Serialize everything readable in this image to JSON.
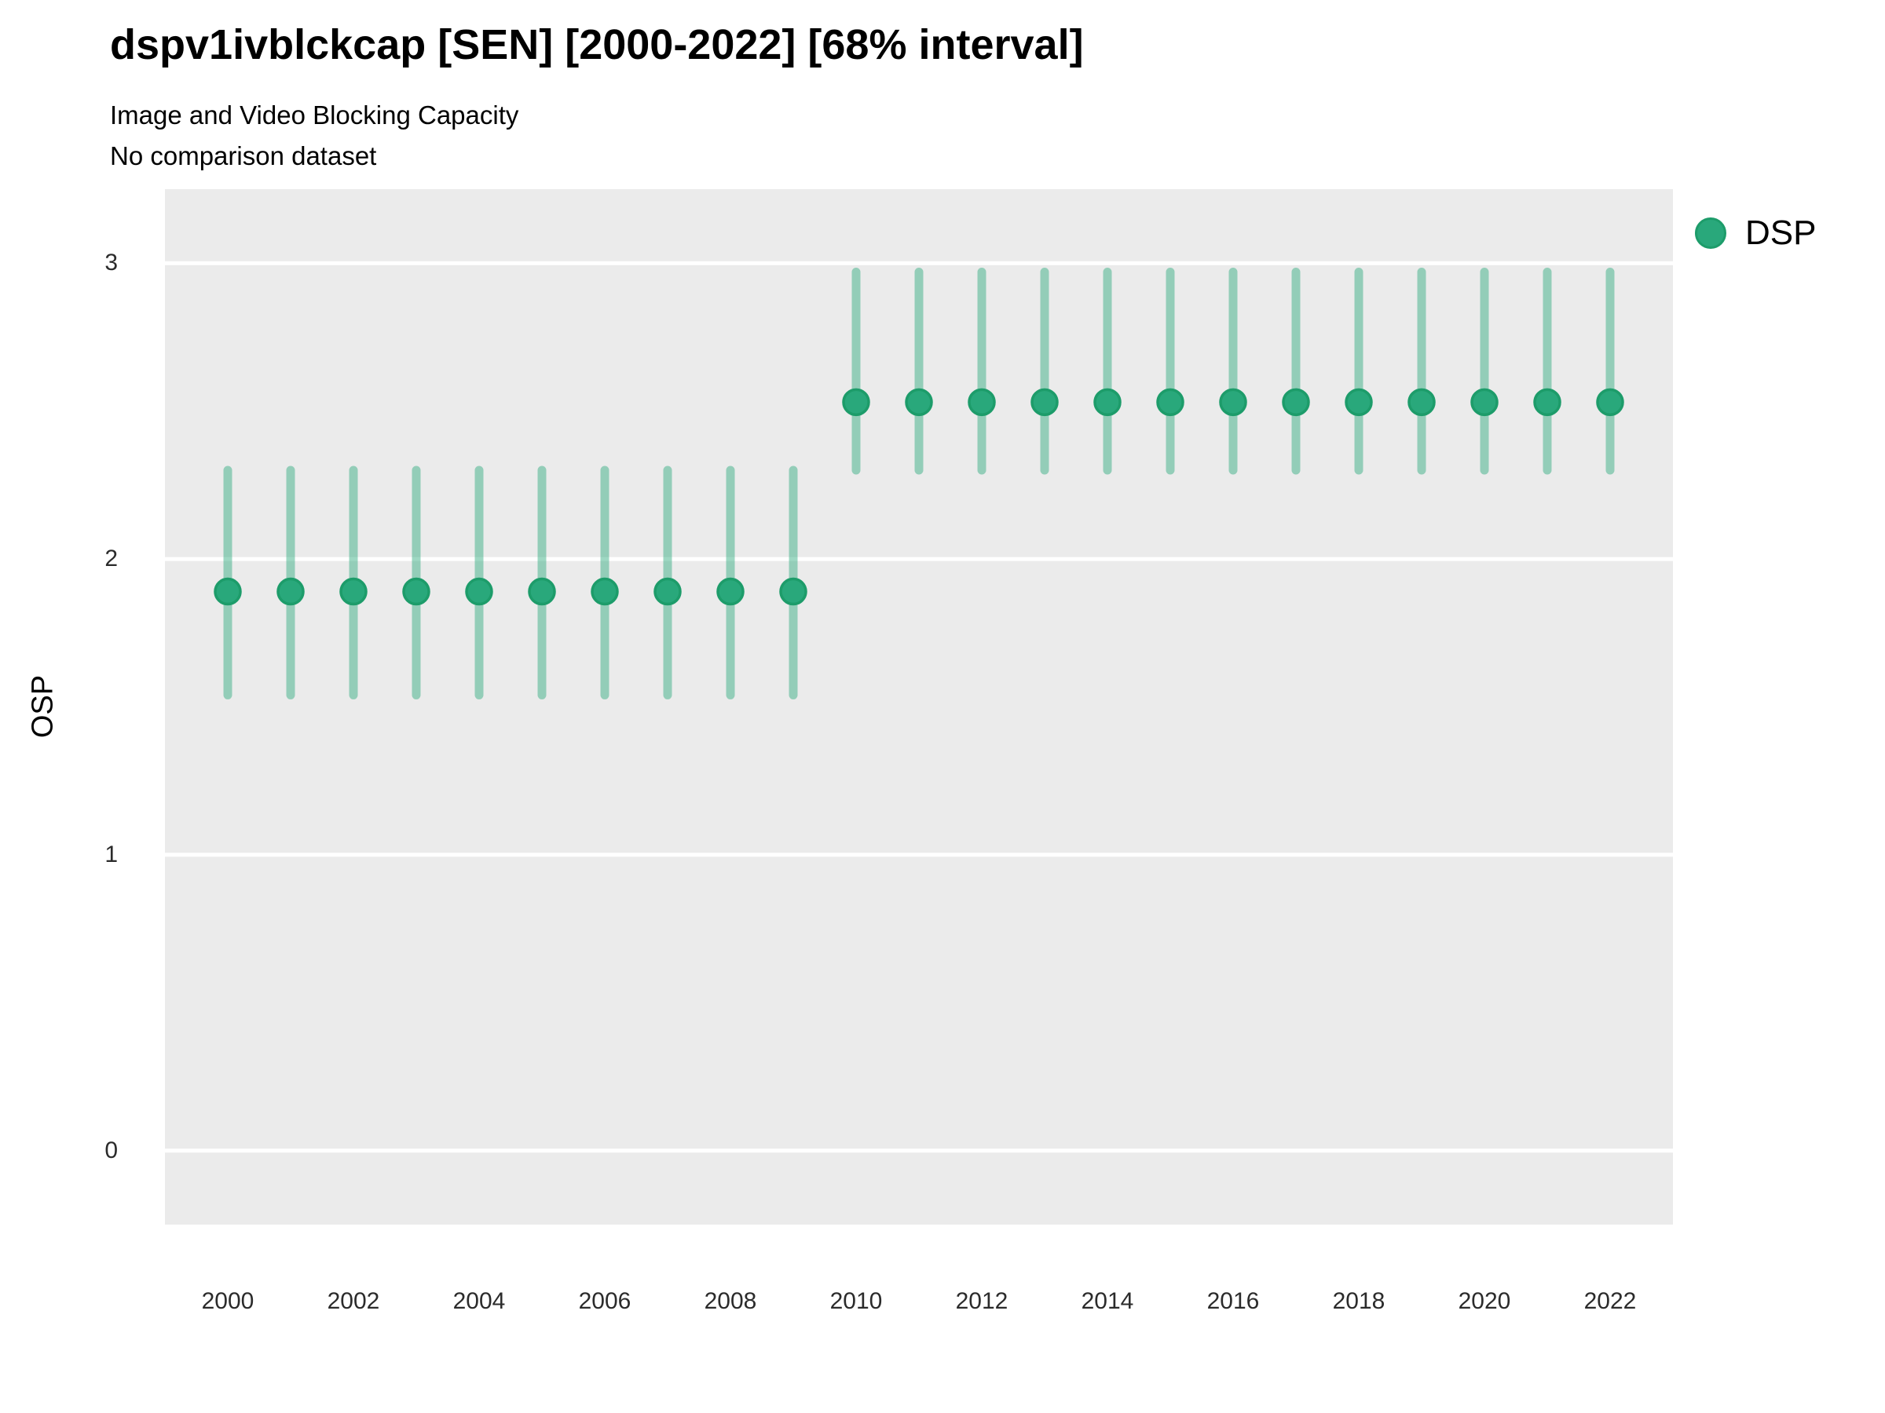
{
  "header": {
    "title": "dspv1ivblckcap [SEN] [2000-2022] [68% interval]",
    "subtitle": "Image and Video Blocking Capacity",
    "note": "No comparison dataset"
  },
  "axes": {
    "y_label": "OSP",
    "y_ticks": [
      0,
      1,
      2,
      3
    ],
    "x_ticks": [
      2000,
      2002,
      2004,
      2006,
      2008,
      2010,
      2012,
      2014,
      2016,
      2018,
      2020,
      2022
    ]
  },
  "legend": {
    "items": [
      {
        "label": "DSP",
        "color": "#29a87b"
      }
    ]
  },
  "colors": {
    "point_fill": "#29a87b",
    "point_stroke": "#1d9c6a",
    "interval_line": "rgba(41,168,123,0.45)",
    "panel_background": "#EBEBEB",
    "gridline": "#FFFFFF"
  },
  "chart_data": {
    "type": "scatter",
    "title": "dspv1ivblckcap [SEN] [2000-2022] [68% interval]",
    "subtitle": "Image and Video Blocking Capacity",
    "note": "No comparison dataset",
    "xlabel": "",
    "ylabel": "OSP",
    "interval": "68%",
    "xlim": [
      1999,
      2023
    ],
    "ylim": [
      -0.25,
      3.25
    ],
    "grid": "major-horizontal-only",
    "legend_position": "right",
    "series": [
      {
        "name": "DSP",
        "x": [
          2000,
          2001,
          2002,
          2003,
          2004,
          2005,
          2006,
          2007,
          2008,
          2009,
          2010,
          2011,
          2012,
          2013,
          2014,
          2015,
          2016,
          2017,
          2018,
          2019,
          2020,
          2021,
          2022
        ],
        "y": [
          1.89,
          1.89,
          1.89,
          1.89,
          1.89,
          1.89,
          1.89,
          1.89,
          1.89,
          1.89,
          2.53,
          2.53,
          2.53,
          2.53,
          2.53,
          2.53,
          2.53,
          2.53,
          2.53,
          2.53,
          2.53,
          2.53,
          2.53
        ],
        "y_lo": [
          1.54,
          1.54,
          1.54,
          1.54,
          1.54,
          1.54,
          1.54,
          1.54,
          1.54,
          1.54,
          2.3,
          2.3,
          2.3,
          2.3,
          2.3,
          2.3,
          2.3,
          2.3,
          2.3,
          2.3,
          2.3,
          2.3,
          2.3
        ],
        "y_hi": [
          2.3,
          2.3,
          2.3,
          2.3,
          2.3,
          2.3,
          2.3,
          2.3,
          2.3,
          2.3,
          2.97,
          2.97,
          2.97,
          2.97,
          2.97,
          2.97,
          2.97,
          2.97,
          2.97,
          2.97,
          2.97,
          2.97,
          2.97
        ]
      }
    ]
  }
}
